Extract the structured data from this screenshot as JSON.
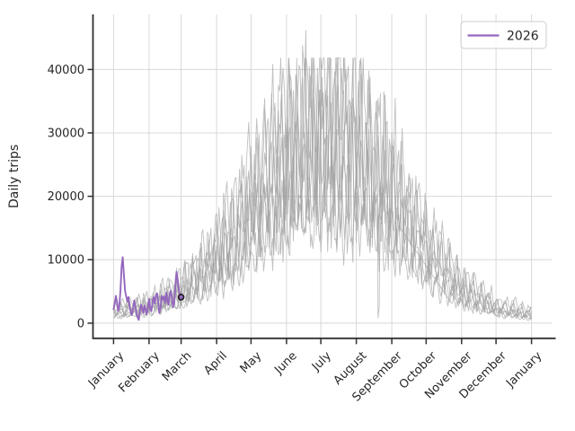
{
  "figure": {
    "background": "#ffffff"
  },
  "chart_data": {
    "type": "line",
    "title": "",
    "xlabel": "",
    "ylabel": "Daily trips",
    "grid": true,
    "x_tick_labels": [
      "January",
      "February",
      "March",
      "April",
      "May",
      "June",
      "July",
      "August",
      "September",
      "October",
      "November",
      "December",
      "January"
    ],
    "x_tick_days": [
      1,
      32,
      60,
      91,
      121,
      152,
      182,
      213,
      244,
      274,
      305,
      335,
      366
    ],
    "y_ticks": [
      0,
      10000,
      20000,
      30000,
      40000
    ],
    "y_tick_labels": [
      "0",
      "10000",
      "20000",
      "30000",
      "40000"
    ],
    "ylim": [
      -2400,
      48700
    ],
    "xlim_days": [
      -17,
      384
    ],
    "legend": {
      "position": "upper right",
      "entries": [
        {
          "label": "2026",
          "color": "#9467bd"
        }
      ]
    },
    "colors": {
      "current_year": "#9467bd",
      "history": "#9e9e9e",
      "grid": "#d8d8d8",
      "spine": "#303030",
      "text": "#262626",
      "marker_edge": "#1a1a1a"
    },
    "current_series": {
      "label": "2026",
      "start_day": 1,
      "values": [
        2200,
        3100,
        4300,
        3300,
        1900,
        2600,
        5200,
        9000,
        10400,
        7600,
        5100,
        4200,
        3400,
        4100,
        2500,
        1700,
        1300,
        2300,
        3600,
        2700,
        1500,
        900,
        500,
        1800,
        2900,
        2300,
        1600,
        2800,
        2100,
        1400,
        2600,
        3800,
        2200,
        1900,
        3300,
        4100,
        3100,
        4400,
        4700,
        3300,
        1600,
        2400,
        4300,
        3700,
        4200,
        3200,
        4800,
        3500,
        2900,
        4600,
        5100,
        3900,
        2500,
        3300,
        5800,
        8100,
        6900,
        5200,
        4400,
        4100
      ],
      "end_marker": {
        "day": 60,
        "value": 4100
      }
    },
    "history_series": [
      {
        "seed": 11,
        "phase": 0,
        "weekly": 0.3,
        "noise": 0.22,
        "month_values": [
          2600,
          3800,
          6500,
          12500,
          20500,
          30000,
          36500,
          33500,
          24500,
          14500,
          7200,
          3600,
          2100
        ]
      },
      {
        "seed": 22,
        "phase": 2,
        "weekly": 0.34,
        "noise": 0.26,
        "month_values": [
          2100,
          3100,
          5600,
          11200,
          22500,
          33500,
          33000,
          30500,
          22500,
          13200,
          6100,
          2600,
          1500
        ],
        "spikes": [
          {
            "day": 166,
            "value": 43800
          },
          {
            "day": 169,
            "value": 46200
          },
          {
            "day": 172,
            "value": 40500
          }
        ]
      },
      {
        "seed": 33,
        "phase": 4,
        "weekly": 0.28,
        "noise": 0.2,
        "month_values": [
          1900,
          2900,
          5100,
          10200,
          17500,
          25500,
          30500,
          28500,
          20500,
          11200,
          5100,
          2300,
          1300
        ]
      },
      {
        "seed": 44,
        "phase": 1,
        "weekly": 0.26,
        "noise": 0.22,
        "month_values": [
          1600,
          2600,
          4600,
          9200,
          15500,
          22500,
          26500,
          25500,
          18500,
          10200,
          4600,
          2100,
          1100
        ]
      },
      {
        "seed": 55,
        "phase": 3,
        "weekly": 0.3,
        "noise": 0.24,
        "month_values": [
          1300,
          2300,
          4100,
          8200,
          14500,
          20500,
          24500,
          22500,
          13500,
          7200,
          4100,
          1900,
          1000
        ],
        "gap": [
          250,
          296
        ]
      },
      {
        "seed": 66,
        "phase": 5,
        "weekly": 0.27,
        "noise": 0.2,
        "month_values": [
          1100,
          1900,
          3600,
          7200,
          12500,
          17500,
          20500,
          19500,
          14500,
          8200,
          3600,
          1600,
          900
        ]
      },
      {
        "seed": 77,
        "phase": 6,
        "weekly": 0.25,
        "noise": 0.22,
        "month_values": [
          900,
          1600,
          3100,
          6200,
          10500,
          14500,
          17000,
          16000,
          11800,
          6700,
          3100,
          1300,
          700
        ]
      },
      {
        "seed": 88,
        "phase": 2,
        "weekly": 0.32,
        "noise": 0.24,
        "month_values": [
          2300,
          3300,
          6000,
          11800,
          19500,
          28500,
          33500,
          31500,
          23200,
          13800,
          6700,
          3100,
          1900
        ],
        "dips": [
          {
            "day": 232,
            "value": 800
          },
          {
            "day": 233,
            "value": 2600
          }
        ]
      }
    ]
  }
}
